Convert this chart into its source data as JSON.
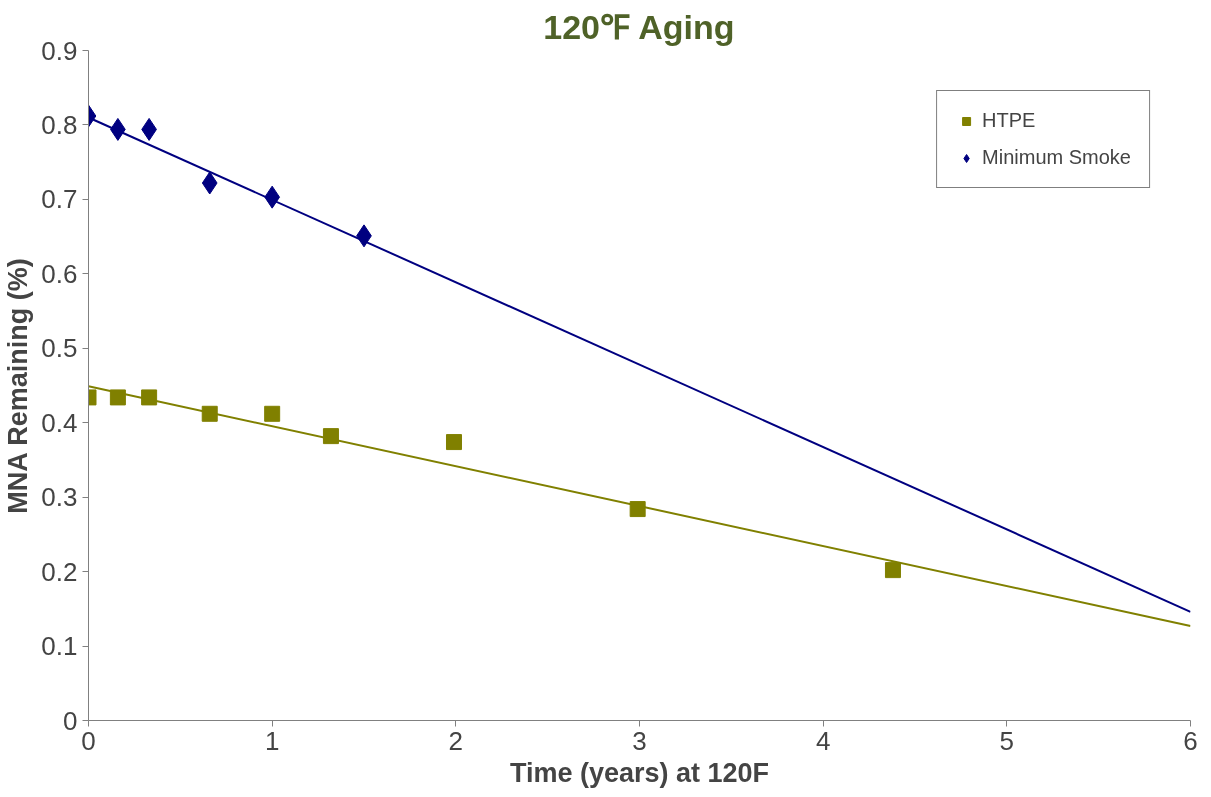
{
  "chart_data": {
    "type": "scatter",
    "title": "120℉ Aging",
    "xlabel": "Time (years) at 120F",
    "ylabel": "MNA Remaining (%)",
    "xlim": [
      0,
      6
    ],
    "ylim": [
      0,
      0.9
    ],
    "xticks": [
      0,
      1,
      2,
      3,
      4,
      5,
      6
    ],
    "yticks": [
      0,
      0.1,
      0.2,
      0.3,
      0.4,
      0.5,
      0.6,
      0.7,
      0.8,
      0.9
    ],
    "grid": false,
    "legend": "top right",
    "series": [
      {
        "name": "HTPE",
        "color": "#808000",
        "marker": "square",
        "x": [
          0,
          0.16,
          0.33,
          0.66,
          1.0,
          1.32,
          1.99,
          2.99,
          4.38
        ],
        "values": [
          0.434,
          0.434,
          0.434,
          0.412,
          0.412,
          0.382,
          0.374,
          0.284,
          0.202
        ]
      },
      {
        "name": "Minimum Smoke",
        "color": "#000080",
        "marker": "diamond",
        "x": [
          0,
          0.16,
          0.33,
          0.66,
          1.0,
          1.5
        ],
        "values": [
          0.812,
          0.794,
          0.794,
          0.722,
          0.703,
          0.651
        ]
      },
      {
        "type": "line",
        "color": "#808000",
        "marker": "none",
        "x": [
          0,
          6
        ],
        "values": [
          0.449,
          0.127
        ]
      },
      {
        "type": "line",
        "color": "#000080",
        "marker": "none",
        "x": [
          0,
          6
        ],
        "values": [
          0.81,
          0.146
        ]
      }
    ]
  }
}
